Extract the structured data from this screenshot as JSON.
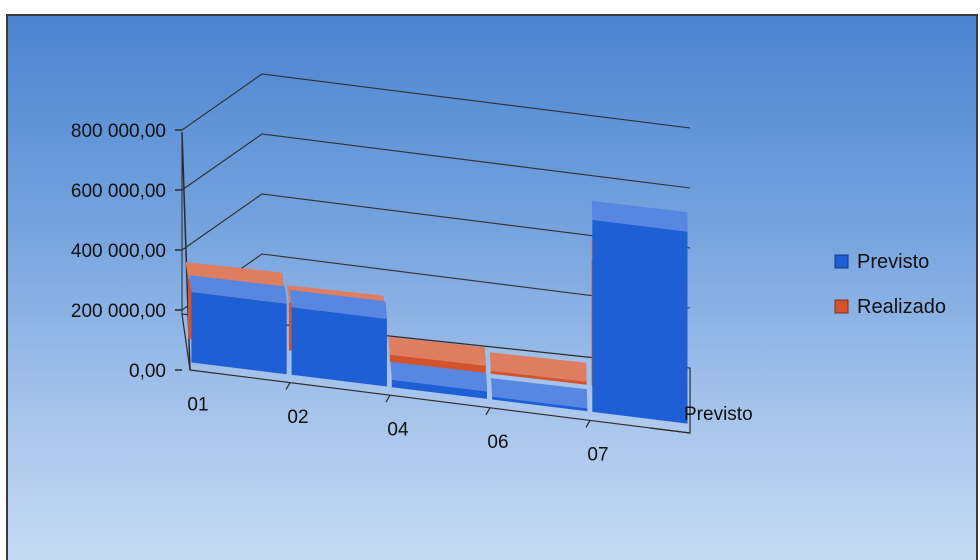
{
  "chart_data": {
    "type": "bar",
    "variant": "3d-clustered-column",
    "categories": [
      "01",
      "02",
      "04",
      "06",
      "07"
    ],
    "series": [
      {
        "name": "Previsto",
        "values": [
          235000,
          225000,
          25000,
          10000,
          640000
        ],
        "color": "#1f5fd6"
      },
      {
        "name": "Realizado",
        "values": [
          200000,
          160000,
          25000,
          10000,
          420000
        ],
        "color": "#d4522c"
      }
    ],
    "y_ticks": [
      "0,00",
      "200 000,00",
      "400 000,00",
      "600 000,00",
      "800 000,00"
    ],
    "ylim": [
      0,
      800000
    ],
    "depth_axis_label": "Previsto",
    "legend_position": "right",
    "grid": true
  }
}
